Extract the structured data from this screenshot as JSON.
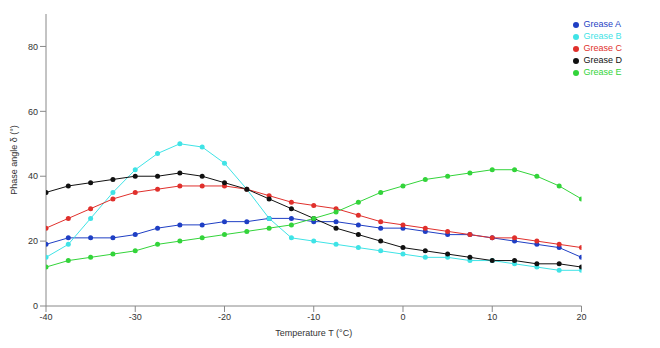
{
  "chart_data": {
    "type": "line",
    "x_label": "Temperature T (°C)",
    "y_label": "Phase angle δ (°)",
    "x": [
      -40,
      -37.5,
      -35,
      -32.5,
      -30,
      -27.5,
      -25,
      -22.5,
      -20,
      -17.5,
      -15,
      -12.5,
      -10,
      -7.5,
      -5,
      -2.5,
      0,
      2.5,
      5,
      7.5,
      10,
      12.5,
      15,
      17.5,
      20
    ],
    "series": [
      {
        "name": "Grease A",
        "color": "#1f3fc4",
        "values": [
          19,
          21,
          21,
          21,
          22,
          24,
          25,
          25,
          26,
          26,
          27,
          27,
          26,
          26,
          25,
          24,
          24,
          23,
          22,
          22,
          21,
          20,
          19,
          18,
          15
        ]
      },
      {
        "name": "Grease B",
        "color": "#3fe3e6",
        "values": [
          15,
          19,
          27,
          35,
          42,
          47,
          50,
          49,
          44,
          36,
          27,
          21,
          20,
          19,
          18,
          17,
          16,
          15,
          15,
          14,
          14,
          13,
          12,
          11,
          11
        ]
      },
      {
        "name": "Grease C",
        "color": "#e0302c",
        "values": [
          24,
          27,
          30,
          33,
          35,
          36,
          37,
          37,
          37,
          36,
          34,
          32,
          31,
          30,
          28,
          26,
          25,
          24,
          23,
          22,
          21,
          21,
          20,
          19,
          18
        ]
      },
      {
        "name": "Grease D",
        "color": "#111111",
        "values": [
          35,
          37,
          38,
          39,
          40,
          40,
          41,
          40,
          38,
          36,
          33,
          30,
          27,
          24,
          22,
          20,
          18,
          17,
          16,
          15,
          14,
          14,
          13,
          13,
          12
        ]
      },
      {
        "name": "Grease E",
        "color": "#33d43a",
        "values": [
          12,
          14,
          15,
          16,
          17,
          19,
          20,
          21,
          22,
          23,
          24,
          25,
          27,
          29,
          32,
          35,
          37,
          39,
          40,
          41,
          42,
          42,
          40,
          37,
          33
        ]
      }
    ],
    "xlim": [
      -40,
      20
    ],
    "ylim": [
      0,
      90
    ],
    "xticks": [
      -40,
      -30,
      -20,
      -10,
      0,
      10,
      20
    ],
    "yticks": [
      0,
      20,
      40,
      60,
      80
    ],
    "grid": false,
    "legend": "top-right",
    "marker": "circle"
  }
}
